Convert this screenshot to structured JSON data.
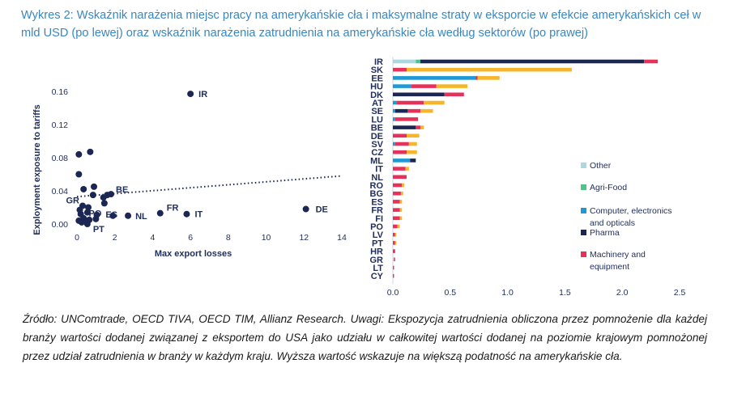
{
  "header": {
    "title": "Wykres 2: Wskaźnik narażenia miejsc pracy na amerykańskie cła i maksymalne straty w eksporcie w efekcie amerykańskich ceł w mld USD (po lewej) oraz wskaźnik narażenia zatrudnienia na amerykańskie cła według sektorów (po prawej)"
  },
  "footer": {
    "note": "Źródło: UNComtrade, OECD TIVA, OECD TIM, Allianz Research. Uwagi: Ekspozycja zatrudnienia obliczona przez pomnożenie dla każdej branży wartości dodanej związanej z eksportem do USA jako udziału w całkowitej wartości dodanej na poziomie krajowym pomnożonej przez udział zatrudnienia w branży w każdym kraju. Wyższa wartość wskazuje na większą podatność na amerykańskie cła."
  },
  "chart_data": [
    {
      "type": "scatter",
      "xlabel": "Max export losses",
      "ylabel": "Exployment exposure to tariffs",
      "xlim": [
        0,
        14
      ],
      "ylim": [
        0,
        0.16
      ],
      "xticks": [
        "0",
        "2",
        "4",
        "6",
        "8",
        "10",
        "12",
        "14"
      ],
      "yticks": [
        "0.00",
        "0.04",
        "0.08",
        "0.12",
        "0.16"
      ],
      "grid": false,
      "trendline": {
        "style": "dotted",
        "x": [
          0,
          14
        ],
        "y": [
          0.033,
          0.058
        ]
      },
      "colors": {
        "point": "#1b2652",
        "text": "#1f2d5a"
      },
      "points": [
        {
          "label": "IR",
          "x": 6.0,
          "y": 0.157
        },
        {
          "label": "DE",
          "x": 12.1,
          "y": 0.018
        },
        {
          "label": "IT",
          "x": 5.8,
          "y": 0.012
        },
        {
          "label": "FR",
          "x": 4.4,
          "y": 0.013
        },
        {
          "label": "NL",
          "x": 2.7,
          "y": 0.01
        },
        {
          "label": "ES",
          "x": 1.9,
          "y": 0.01
        },
        {
          "label": "PO",
          "x": 1.05,
          "y": 0.011
        },
        {
          "label": "BE",
          "x": 1.8,
          "y": 0.036
        },
        {
          "label": "GR",
          "x": 0.3,
          "y": 0.022
        },
        {
          "label": "PT",
          "x": 0.55,
          "y": 0.0
        },
        {
          "label": "",
          "x": 0.1,
          "y": 0.084
        },
        {
          "label": "",
          "x": 0.7,
          "y": 0.087
        },
        {
          "label": "",
          "x": 0.1,
          "y": 0.06
        },
        {
          "label": "",
          "x": 0.35,
          "y": 0.042
        },
        {
          "label": "",
          "x": 0.9,
          "y": 0.045
        },
        {
          "label": "",
          "x": 1.4,
          "y": 0.032
        },
        {
          "label": "",
          "x": 1.6,
          "y": 0.035
        },
        {
          "label": "",
          "x": 0.85,
          "y": 0.035
        },
        {
          "label": "",
          "x": 1.45,
          "y": 0.025
        },
        {
          "label": "",
          "x": 0.15,
          "y": 0.017
        },
        {
          "label": "",
          "x": 0.2,
          "y": 0.012
        },
        {
          "label": "",
          "x": 0.6,
          "y": 0.02
        },
        {
          "label": "",
          "x": 0.55,
          "y": 0.014
        },
        {
          "label": "",
          "x": 0.35,
          "y": 0.007
        },
        {
          "label": "",
          "x": 0.1,
          "y": 0.004
        },
        {
          "label": "",
          "x": 0.25,
          "y": 0.002
        },
        {
          "label": "",
          "x": 0.45,
          "y": 0.003
        },
        {
          "label": "",
          "x": 0.65,
          "y": 0.005
        },
        {
          "label": "",
          "x": 1.0,
          "y": 0.006
        }
      ]
    },
    {
      "type": "bar",
      "orientation": "horizontal",
      "stacked": true,
      "xlim": [
        0,
        2.5
      ],
      "xticks": [
        "0.0",
        "0.5",
        "1.0",
        "1.5",
        "2.0",
        "2.5"
      ],
      "legend_position": "right",
      "categories": [
        "IR",
        "SK",
        "EE",
        "HU",
        "DK",
        "AT",
        "SE",
        "LU",
        "BE",
        "DE",
        "SV",
        "CZ",
        "ML",
        "IT",
        "NL",
        "RO",
        "BG",
        "ES",
        "FR",
        "FI",
        "PO",
        "LV",
        "PT",
        "HR",
        "GR",
        "LT",
        "CY"
      ],
      "series": [
        {
          "name": "Other",
          "color": "#aad8e3",
          "values": [
            0.2,
            0.0,
            0.0,
            0.0,
            0.0,
            0.0,
            0.0,
            0.0,
            0.0,
            0.0,
            0.0,
            0.0,
            0.0,
            0.0,
            0.0,
            0.0,
            0.0,
            0.0,
            0.0,
            0.0,
            0.0,
            0.0,
            0.0,
            0.0,
            0.01,
            0.0,
            0.0
          ]
        },
        {
          "name": "Agri-Food",
          "color": "#4fc48a",
          "values": [
            0.04,
            0.0,
            0.0,
            0.0,
            0.0,
            0.0,
            0.0,
            0.0,
            0.0,
            0.0,
            0.0,
            0.0,
            0.0,
            0.0,
            0.0,
            0.0,
            0.0,
            0.0,
            0.0,
            0.0,
            0.0,
            0.0,
            0.0,
            0.0,
            0.0,
            0.0,
            0.0
          ]
        },
        {
          "name": "Computer, electronics and opticals",
          "color": "#1d9ad6",
          "values": [
            0.0,
            0.0,
            0.72,
            0.16,
            0.0,
            0.03,
            0.02,
            0.02,
            0.0,
            0.0,
            0.02,
            0.0,
            0.15,
            0.0,
            0.0,
            0.0,
            0.0,
            0.0,
            0.0,
            0.0,
            0.0,
            0.0,
            0.0,
            0.0,
            0.0,
            0.0,
            0.0
          ]
        },
        {
          "name": "Pharma",
          "color": "#1b2652",
          "values": [
            1.95,
            0.0,
            0.0,
            0.0,
            0.45,
            0.0,
            0.11,
            0.0,
            0.2,
            0.0,
            0.0,
            0.0,
            0.05,
            0.0,
            0.0,
            0.0,
            0.0,
            0.0,
            0.0,
            0.0,
            0.0,
            0.0,
            0.0,
            0.0,
            0.0,
            0.0,
            0.0
          ]
        },
        {
          "name": "Machinery and equipment",
          "color": "#e6325a",
          "values": [
            0.12,
            0.12,
            0.02,
            0.22,
            0.17,
            0.24,
            0.11,
            0.2,
            0.04,
            0.12,
            0.12,
            0.12,
            0.0,
            0.11,
            0.12,
            0.08,
            0.07,
            0.06,
            0.06,
            0.06,
            0.04,
            0.02,
            0.02,
            0.02,
            0.01,
            0.01,
            0.01
          ]
        },
        {
          "name": "",
          "color": "#f7b52c",
          "values": [
            0.0,
            1.44,
            0.19,
            0.27,
            0.0,
            0.18,
            0.11,
            0.0,
            0.03,
            0.11,
            0.07,
            0.09,
            0.0,
            0.03,
            0.0,
            0.02,
            0.02,
            0.02,
            0.02,
            0.02,
            0.02,
            0.01,
            0.01,
            0.0,
            0.0,
            0.0,
            0.0
          ]
        }
      ]
    }
  ]
}
